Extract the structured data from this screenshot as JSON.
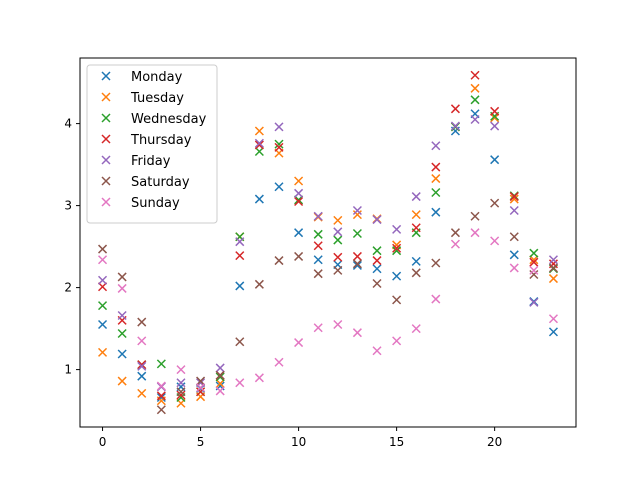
{
  "chart_data": {
    "type": "scatter",
    "title": "",
    "xlabel": "",
    "ylabel": "",
    "xlim": [
      -1.15,
      24.15
    ],
    "ylim": [
      0.3,
      4.8
    ],
    "xticks": [
      0,
      5,
      10,
      15,
      20
    ],
    "yticks": [
      1,
      2,
      3,
      4
    ],
    "grid": false,
    "legend": "upper-left",
    "x": [
      0,
      1,
      2,
      3,
      4,
      5,
      6,
      7,
      8,
      9,
      10,
      11,
      12,
      13,
      14,
      15,
      16,
      17,
      18,
      19,
      20,
      21,
      22,
      23
    ],
    "series": [
      {
        "name": "Monday",
        "color": "#1f77b4",
        "values": [
          1.55,
          1.19,
          0.92,
          0.66,
          0.79,
          0.77,
          0.8,
          2.02,
          3.08,
          3.23,
          2.67,
          2.34,
          2.28,
          2.27,
          2.23,
          2.14,
          2.32,
          2.92,
          3.91,
          4.12,
          3.56,
          2.4,
          1.83,
          1.46
        ]
      },
      {
        "name": "Tuesday",
        "color": "#ff7f0e",
        "values": [
          1.21,
          0.86,
          0.71,
          0.62,
          0.59,
          0.67,
          0.83,
          2.62,
          3.91,
          3.64,
          3.3,
          2.86,
          2.82,
          2.89,
          2.84,
          2.52,
          2.89,
          3.33,
          3.96,
          4.43,
          4.07,
          3.08,
          2.34,
          2.11
        ]
      },
      {
        "name": "Wednesday",
        "color": "#2ca02c",
        "values": [
          1.78,
          1.44,
          1.06,
          1.07,
          0.66,
          0.73,
          0.91,
          2.62,
          3.66,
          3.75,
          3.07,
          2.65,
          2.58,
          2.66,
          2.45,
          2.45,
          2.67,
          3.16,
          3.96,
          4.29,
          4.09,
          3.12,
          2.42,
          2.23
        ]
      },
      {
        "name": "Thursday",
        "color": "#d62728",
        "values": [
          2.01,
          1.6,
          1.06,
          0.68,
          0.69,
          0.73,
          0.93,
          2.39,
          3.74,
          3.71,
          3.05,
          2.51,
          2.37,
          2.38,
          2.33,
          2.48,
          2.73,
          3.47,
          4.18,
          4.59,
          4.15,
          3.11,
          2.31,
          2.29
        ]
      },
      {
        "name": "Friday",
        "color": "#9467bd",
        "values": [
          2.09,
          1.66,
          1.04,
          0.79,
          0.84,
          0.84,
          1.02,
          2.56,
          3.76,
          3.96,
          3.15,
          2.87,
          2.68,
          2.94,
          2.83,
          2.71,
          3.11,
          3.73,
          3.97,
          4.05,
          3.97,
          2.94,
          1.82,
          2.34
        ]
      },
      {
        "name": "Saturday",
        "color": "#8c564b",
        "values": [
          2.47,
          2.13,
          1.58,
          0.51,
          0.73,
          0.86,
          0.93,
          1.34,
          2.04,
          2.33,
          2.38,
          2.17,
          2.21,
          2.29,
          2.05,
          1.85,
          2.18,
          2.3,
          2.67,
          2.87,
          3.03,
          2.62,
          2.16,
          2.24
        ]
      },
      {
        "name": "Sunday",
        "color": "#e377c2",
        "values": [
          2.34,
          1.99,
          1.35,
          0.8,
          1.0,
          0.78,
          0.74,
          0.84,
          0.9,
          1.09,
          1.33,
          1.51,
          1.55,
          1.45,
          1.23,
          1.35,
          1.5,
          1.86,
          2.53,
          2.67,
          2.57,
          2.24,
          2.21,
          1.62
        ]
      }
    ]
  }
}
